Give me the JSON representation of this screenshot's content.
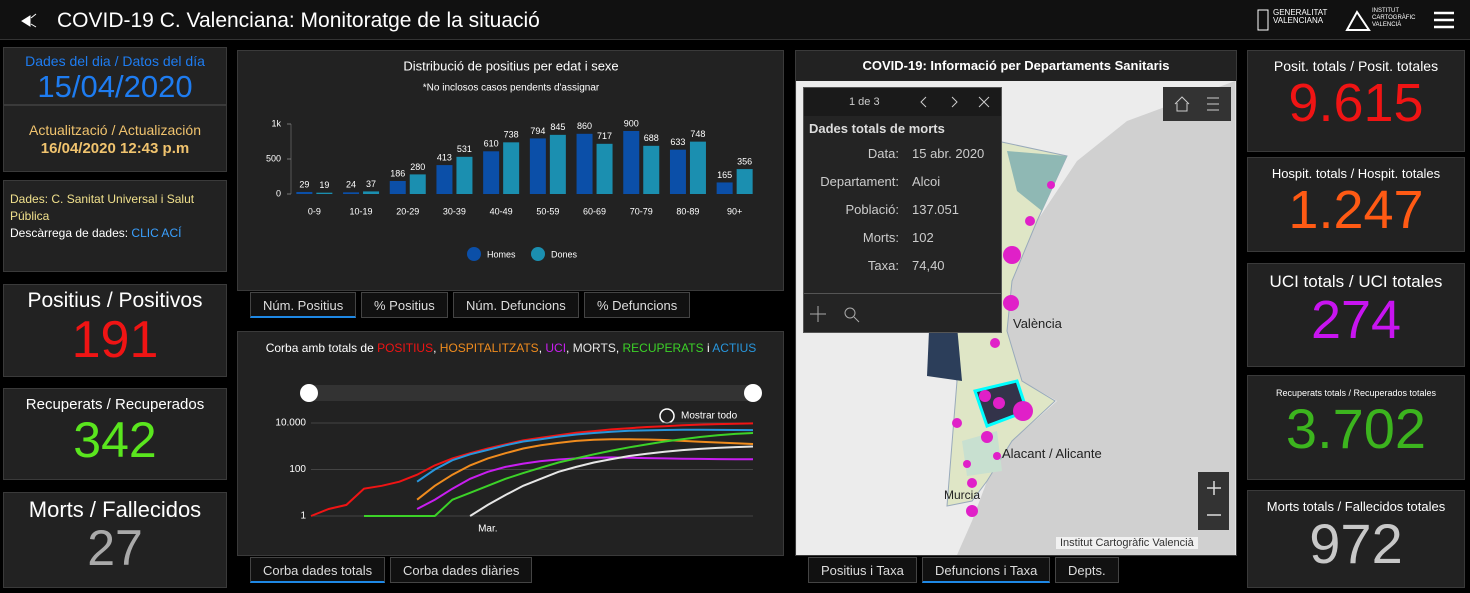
{
  "header": {
    "title": "COVID-19 C. Valenciana: Monitoratge de la situació",
    "logo_gva": [
      "GENERALITAT",
      "VALENCIANA"
    ],
    "logo_icv": [
      "INSTITUT",
      "CARTOGRÀFIC",
      "VALENCIÀ"
    ]
  },
  "left": {
    "date_label": "Dades del dia / Datos del día",
    "date": "15/04/2020",
    "update_label": "Actualització / Actualización",
    "update": "16/04/2020 12:43 p.m",
    "source": "Dades: C. Sanitat Universal i Salut Pública",
    "download_label": "Descàrrega de dades:",
    "download_link": "CLIC ACÍ",
    "cards": [
      {
        "label": "Positius / Positivos",
        "value": "191",
        "color": "#f01414"
      },
      {
        "label": "Recuperats / Recuperados",
        "value": "342",
        "color": "#5ae61e"
      },
      {
        "label": "Morts / Fallecidos",
        "value": "27",
        "color": "#aaaaaa"
      }
    ]
  },
  "age_chart": {
    "type": "bar",
    "title": "Distribució de positius per edat i sexe",
    "subtitle": "*No inclosos casos pendents d'assignar",
    "categories": [
      "0-9",
      "10-19",
      "20-29",
      "30-39",
      "40-49",
      "50-59",
      "60-69",
      "70-79",
      "80-89",
      "90+"
    ],
    "series": [
      {
        "name": "Homes",
        "color": "#0b4fa8",
        "values": [
          29,
          24,
          186,
          413,
          610,
          794,
          860,
          900,
          633,
          165
        ]
      },
      {
        "name": "Dones",
        "color": "#1b8fb0",
        "values": [
          19,
          37,
          280,
          531,
          738,
          845,
          717,
          688,
          748,
          356
        ]
      }
    ],
    "ylim": [
      0,
      1000
    ],
    "yticks": [
      0,
      500,
      {
        "value": 1000,
        "label": "1k"
      }
    ],
    "tabs": [
      "Núm. Positius",
      "% Positius",
      "Núm. Defuncions",
      "% Defuncions"
    ],
    "active_tab": 0
  },
  "line_chart": {
    "type": "line",
    "title_prefix": "Corba amb totals de ",
    "title_separators": [
      ", ",
      ", ",
      ", ",
      ", ",
      " i "
    ],
    "log_scale": true,
    "categories": [
      null,
      null,
      null,
      null,
      null,
      null,
      null,
      null,
      null,
      null,
      "Mar.",
      null,
      null,
      null,
      null,
      null,
      null,
      null,
      null,
      null,
      null,
      null,
      null,
      null,
      null,
      null
    ],
    "series": [
      {
        "name": "POSITIUS",
        "color": "#f01414",
        "values": [
          1,
          2,
          3,
          15,
          20,
          30,
          60,
          150,
          300,
          500,
          800,
          1200,
          1800,
          2300,
          3000,
          3800,
          4500,
          5300,
          6000,
          6700,
          7300,
          8000,
          8500,
          9000,
          9300,
          9615
        ]
      },
      {
        "name": "HOSPITALITZATS",
        "color": "#f08c1e",
        "values": [
          null,
          null,
          null,
          null,
          null,
          null,
          5,
          20,
          60,
          150,
          300,
          500,
          800,
          1100,
          1400,
          1700,
          1900,
          2000,
          2000,
          1950,
          1850,
          1700,
          1550,
          1450,
          1350,
          1247
        ]
      },
      {
        "name": "UCI",
        "color": "#c81ef0",
        "values": [
          null,
          null,
          null,
          null,
          null,
          null,
          2,
          5,
          15,
          40,
          80,
          130,
          180,
          230,
          270,
          300,
          320,
          330,
          320,
          310,
          300,
          290,
          285,
          280,
          276,
          274
        ]
      },
      {
        "name": "MORTS",
        "color": "#e6e6e6",
        "values": [
          null,
          null,
          null,
          null,
          null,
          null,
          null,
          null,
          null,
          1,
          3,
          8,
          20,
          40,
          80,
          130,
          200,
          280,
          380,
          480,
          580,
          680,
          770,
          850,
          920,
          972
        ]
      },
      {
        "name": "RECUPERATS",
        "color": "#3cd228",
        "values": [
          null,
          null,
          null,
          1,
          1,
          1,
          1,
          1,
          5,
          10,
          20,
          40,
          70,
          120,
          200,
          300,
          450,
          650,
          900,
          1200,
          1600,
          2000,
          2500,
          3000,
          3400,
          3702
        ]
      },
      {
        "name": "ACTIUS",
        "color": "#2896dc",
        "values": [
          null,
          null,
          null,
          null,
          null,
          null,
          30,
          100,
          250,
          450,
          700,
          1100,
          1600,
          2000,
          2600,
          3200,
          3700,
          4200,
          4600,
          4800,
          5000,
          5100,
          5100,
          5050,
          5000,
          4941
        ]
      }
    ],
    "ylim": [
      1,
      10000
    ],
    "yticks": [
      1,
      100,
      {
        "value": 10000,
        "label": "10.000"
      }
    ],
    "zoom_label": "Mostrar todo",
    "tabs": [
      "Corba dades totals",
      "Corba dades diàries"
    ],
    "active_tab": 0
  },
  "map": {
    "title": "COVID-19: Informació per Departaments Sanitaris",
    "popup": {
      "counter": "1 de 3",
      "title": "Dades totals de morts",
      "fields": [
        {
          "label": "Data:",
          "value": "15 abr. 2020"
        },
        {
          "label": "Departament:",
          "value": "Alcoi"
        },
        {
          "label": "Població:",
          "value": "137.051"
        },
        {
          "label": "Morts:",
          "value": "102"
        },
        {
          "label": "Taxa:",
          "value": "74,40"
        }
      ]
    },
    "places": [
      "València",
      "Alacant / Alicante",
      "Murcia"
    ],
    "attribution": "Institut Cartogràfic Valencià",
    "tabs": [
      "Positius i Taxa",
      "Defuncions i Taxa",
      "Depts."
    ],
    "active_tab": 1
  },
  "right": {
    "cards": [
      {
        "label": "Posit. totals / Posit. totales",
        "value": "9.615",
        "color": "#f01414"
      },
      {
        "label": "Hospit. totals / Hospit. totales",
        "value": "1.247",
        "color": "#ff5a14"
      },
      {
        "label": "UCI totals / UCI totales",
        "value": "274",
        "color": "#c814f0"
      },
      {
        "label": "Recuperats totals / Recuperados totales",
        "value": "3.702",
        "color": "#3cb41e"
      },
      {
        "label": "Morts totals / Fallecidos totales",
        "value": "972",
        "color": "#c8c8c8"
      }
    ]
  }
}
